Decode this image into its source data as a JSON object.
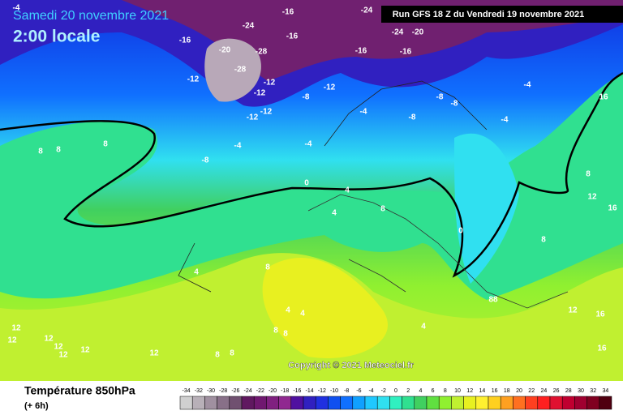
{
  "header": {
    "date": "Samedi 20 novembre 2021",
    "time": "2:00 locale",
    "run": "Run GFS 18 Z du Vendredi 19 novembre 2021"
  },
  "footer": {
    "title": "Température 850hPa",
    "subtitle": "(+ 6h)",
    "copyright": "Copyright © 2021 Meteociel.fr"
  },
  "scale": {
    "labels": [
      "-34",
      "-32",
      "-30",
      "-28",
      "-26",
      "-24",
      "-22",
      "-20",
      "-18",
      "-16",
      "-14",
      "-12",
      "-10",
      "-8",
      "-6",
      "-4",
      "-2",
      "0",
      "2",
      "4",
      "6",
      "8",
      "10",
      "12",
      "14",
      "16",
      "18",
      "20",
      "22",
      "24",
      "26",
      "28",
      "30",
      "32",
      "34"
    ],
    "colors": [
      "#d0d0d0",
      "#b8b0b8",
      "#a090a0",
      "#887088",
      "#705070",
      "#601860",
      "#701870",
      "#802080",
      "#902890",
      "#5010a0",
      "#3020c0",
      "#2030e0",
      "#1050f0",
      "#1070ff",
      "#10a0ff",
      "#20c8ff",
      "#30e0f0",
      "#30f0c0",
      "#30e090",
      "#40d060",
      "#60e040",
      "#90f030",
      "#c0f030",
      "#e8f020",
      "#fff030",
      "#ffd020",
      "#ffa020",
      "#ff7020",
      "#ff4020",
      "#ff2020",
      "#e01030",
      "#c00030",
      "#a00030",
      "#800020",
      "#500010"
    ]
  },
  "map_labels": [
    "-4",
    "-16",
    "-24",
    "-20",
    "-28",
    "-28",
    "-12",
    "-12",
    "-12",
    "-8",
    "-12",
    "-12",
    "-12",
    "-16",
    "-16",
    "-16",
    "-20",
    "-24",
    "-24",
    "-16",
    "-8",
    "-8",
    "-8",
    "-4",
    "-4",
    "-4",
    "-4",
    "-4",
    "-8",
    "0",
    "4",
    "4",
    "4",
    "8",
    "8",
    "8",
    "8",
    "8",
    "0",
    "4",
    "12",
    "12",
    "12",
    "12",
    "8",
    "8",
    "12",
    "16",
    "16",
    "16",
    "8",
    "8",
    "12",
    "16",
    "88",
    "4",
    "4",
    "8",
    "8",
    "12",
    "12",
    "12"
  ]
}
